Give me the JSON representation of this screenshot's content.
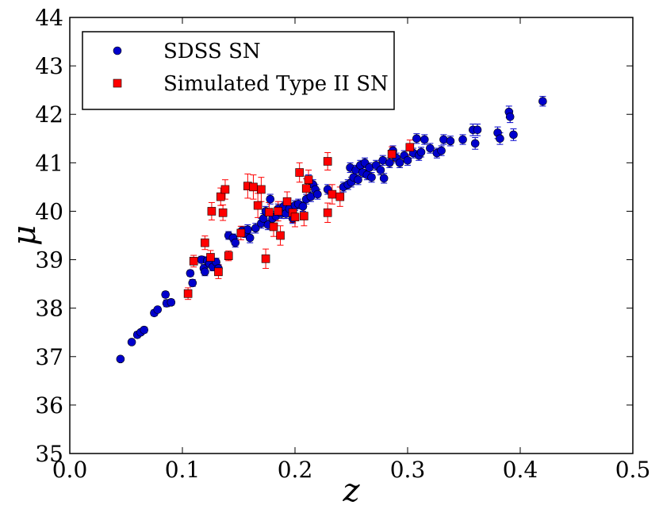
{
  "chart_data": {
    "type": "scatter",
    "title": "",
    "xlabel": "z",
    "ylabel": "μ",
    "xlim": [
      0.0,
      0.5
    ],
    "ylim": [
      35,
      44
    ],
    "xticks": [
      "0.0",
      "0.1",
      "0.2",
      "0.3",
      "0.4",
      "0.5"
    ],
    "yticks": [
      "35",
      "36",
      "37",
      "38",
      "39",
      "40",
      "41",
      "42",
      "43",
      "44"
    ],
    "grid": false,
    "legend_position": "top-left",
    "series": [
      {
        "name": "SDSS SN",
        "color": "#0000cc",
        "marker": "circle",
        "points": [
          [
            0.045,
            36.95,
            0.04
          ],
          [
            0.055,
            37.3,
            0.05
          ],
          [
            0.06,
            37.45,
            0.06
          ],
          [
            0.063,
            37.5,
            0.05
          ],
          [
            0.066,
            37.55,
            0.06
          ],
          [
            0.075,
            37.9,
            0.06
          ],
          [
            0.078,
            37.97,
            0.05
          ],
          [
            0.085,
            38.28,
            0.06
          ],
          [
            0.086,
            38.1,
            0.07
          ],
          [
            0.09,
            38.12,
            0.06
          ],
          [
            0.107,
            38.72,
            0.06
          ],
          [
            0.109,
            38.52,
            0.07
          ],
          [
            0.117,
            39.0,
            0.07
          ],
          [
            0.119,
            38.82,
            0.08
          ],
          [
            0.12,
            38.75,
            0.08
          ],
          [
            0.122,
            38.98,
            0.08
          ],
          [
            0.124,
            38.92,
            0.07
          ],
          [
            0.127,
            38.85,
            0.08
          ],
          [
            0.13,
            38.95,
            0.08
          ],
          [
            0.132,
            38.82,
            0.08
          ],
          [
            0.141,
            39.5,
            0.08
          ],
          [
            0.145,
            39.45,
            0.08
          ],
          [
            0.147,
            39.35,
            0.09
          ],
          [
            0.153,
            39.6,
            0.09
          ],
          [
            0.156,
            39.55,
            0.09
          ],
          [
            0.158,
            39.62,
            0.1
          ],
          [
            0.16,
            39.45,
            0.1
          ],
          [
            0.165,
            39.65,
            0.1
          ],
          [
            0.17,
            39.75,
            0.1
          ],
          [
            0.172,
            39.85,
            0.1
          ],
          [
            0.174,
            40.0,
            0.1
          ],
          [
            0.176,
            39.72,
            0.1
          ],
          [
            0.178,
            40.25,
            0.1
          ],
          [
            0.18,
            39.85,
            0.1
          ],
          [
            0.183,
            39.9,
            0.1
          ],
          [
            0.185,
            40.05,
            0.1
          ],
          [
            0.188,
            39.95,
            0.1
          ],
          [
            0.19,
            40.1,
            0.1
          ],
          [
            0.192,
            39.95,
            0.1
          ],
          [
            0.195,
            40.05,
            0.1
          ],
          [
            0.198,
            39.85,
            0.1
          ],
          [
            0.2,
            40.12,
            0.1
          ],
          [
            0.203,
            40.15,
            0.1
          ],
          [
            0.207,
            40.1,
            0.1
          ],
          [
            0.21,
            40.25,
            0.1
          ],
          [
            0.212,
            40.65,
            0.1
          ],
          [
            0.214,
            40.3,
            0.1
          ],
          [
            0.216,
            40.55,
            0.1
          ],
          [
            0.218,
            40.45,
            0.1
          ],
          [
            0.22,
            40.35,
            0.1
          ],
          [
            0.229,
            40.45,
            0.1
          ],
          [
            0.243,
            40.5,
            0.1
          ],
          [
            0.247,
            40.55,
            0.1
          ],
          [
            0.249,
            40.9,
            0.1
          ],
          [
            0.25,
            40.6,
            0.1
          ],
          [
            0.252,
            40.7,
            0.1
          ],
          [
            0.254,
            40.85,
            0.1
          ],
          [
            0.256,
            40.65,
            0.1
          ],
          [
            0.258,
            40.95,
            0.1
          ],
          [
            0.26,
            40.8,
            0.1
          ],
          [
            0.262,
            41.0,
            0.1
          ],
          [
            0.264,
            40.75,
            0.1
          ],
          [
            0.266,
            40.9,
            0.1
          ],
          [
            0.268,
            40.7,
            0.1
          ],
          [
            0.272,
            40.95,
            0.1
          ],
          [
            0.276,
            40.85,
            0.1
          ],
          [
            0.278,
            41.05,
            0.1
          ],
          [
            0.279,
            40.68,
            0.1
          ],
          [
            0.284,
            41.0,
            0.1
          ],
          [
            0.287,
            41.25,
            0.1
          ],
          [
            0.29,
            41.1,
            0.1
          ],
          [
            0.293,
            41.0,
            0.1
          ],
          [
            0.297,
            41.15,
            0.1
          ],
          [
            0.3,
            41.05,
            0.1
          ],
          [
            0.305,
            41.2,
            0.1
          ],
          [
            0.308,
            41.5,
            0.1
          ],
          [
            0.31,
            41.15,
            0.1
          ],
          [
            0.312,
            41.22,
            0.1
          ],
          [
            0.315,
            41.48,
            0.1
          ],
          [
            0.32,
            41.3,
            0.1
          ],
          [
            0.326,
            41.2,
            0.1
          ],
          [
            0.33,
            41.25,
            0.1
          ],
          [
            0.332,
            41.48,
            0.1
          ],
          [
            0.338,
            41.45,
            0.1
          ],
          [
            0.349,
            41.48,
            0.1
          ],
          [
            0.358,
            41.68,
            0.12
          ],
          [
            0.36,
            41.4,
            0.12
          ],
          [
            0.362,
            41.68,
            0.12
          ],
          [
            0.38,
            41.62,
            0.12
          ],
          [
            0.382,
            41.5,
            0.12
          ],
          [
            0.39,
            42.05,
            0.12
          ],
          [
            0.391,
            41.95,
            0.12
          ],
          [
            0.394,
            41.58,
            0.12
          ],
          [
            0.42,
            42.27,
            0.1
          ]
        ]
      },
      {
        "name": "Simulated Type II SN",
        "color": "#ff0000",
        "marker": "square",
        "points": [
          [
            0.105,
            38.3,
            0.12
          ],
          [
            0.11,
            38.97,
            0.12
          ],
          [
            0.12,
            39.35,
            0.14
          ],
          [
            0.125,
            39.05,
            0.14
          ],
          [
            0.126,
            40.0,
            0.18
          ],
          [
            0.132,
            38.75,
            0.14
          ],
          [
            0.134,
            40.3,
            0.18
          ],
          [
            0.136,
            39.97,
            0.16
          ],
          [
            0.138,
            40.45,
            0.2
          ],
          [
            0.141,
            39.08,
            0.1
          ],
          [
            0.152,
            39.55,
            0.14
          ],
          [
            0.158,
            40.52,
            0.25
          ],
          [
            0.163,
            40.5,
            0.25
          ],
          [
            0.167,
            40.12,
            0.25
          ],
          [
            0.17,
            40.45,
            0.25
          ],
          [
            0.174,
            39.02,
            0.2
          ],
          [
            0.177,
            39.98,
            0.2
          ],
          [
            0.181,
            39.68,
            0.2
          ],
          [
            0.185,
            40.0,
            0.2
          ],
          [
            0.187,
            39.5,
            0.2
          ],
          [
            0.193,
            40.2,
            0.2
          ],
          [
            0.198,
            39.97,
            0.2
          ],
          [
            0.2,
            39.88,
            0.2
          ],
          [
            0.204,
            40.8,
            0.2
          ],
          [
            0.208,
            39.9,
            0.2
          ],
          [
            0.21,
            40.47,
            0.2
          ],
          [
            0.212,
            40.65,
            0.2
          ],
          [
            0.229,
            41.03,
            0.18
          ],
          [
            0.229,
            39.97,
            0.2
          ],
          [
            0.233,
            40.35,
            0.2
          ],
          [
            0.24,
            40.3,
            0.2
          ],
          [
            0.286,
            41.18,
            0.15
          ],
          [
            0.302,
            41.32,
            0.15
          ]
        ]
      }
    ]
  }
}
